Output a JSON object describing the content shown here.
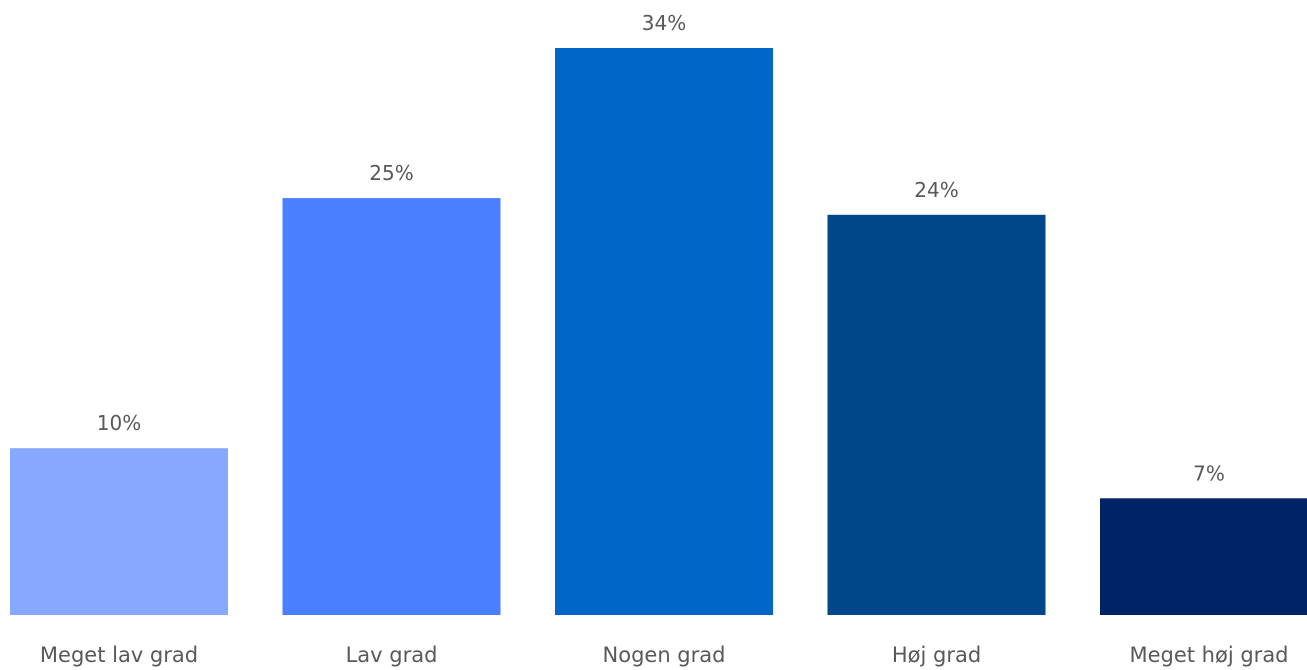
{
  "chart_data": {
    "type": "bar",
    "title": "",
    "xlabel": "",
    "ylabel": "",
    "ylim": [
      0,
      34
    ],
    "grid": false,
    "legend": "none",
    "categories": [
      "Meget lav grad",
      "Lav grad",
      "Nogen grad",
      "Høj grad",
      "Meget høj grad"
    ],
    "values": [
      10,
      25,
      34,
      24,
      7
    ],
    "data_labels": [
      "10%",
      "25%",
      "34%",
      "24%",
      "7%"
    ],
    "colors": [
      "#86a8ff",
      "#4a7fff",
      "#0066c8",
      "#00478a",
      "#002266"
    ]
  }
}
